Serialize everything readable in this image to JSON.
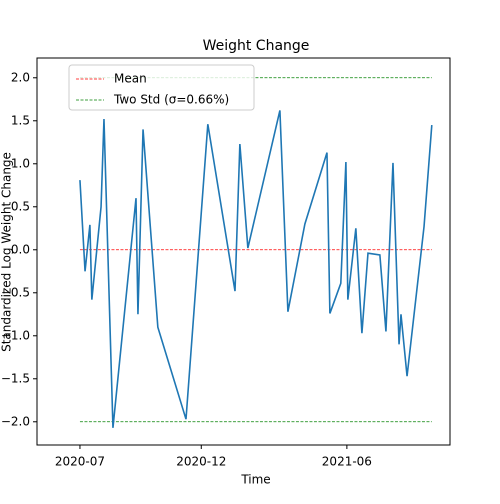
{
  "chart_data": {
    "type": "line",
    "title": "Weight Change",
    "xlabel": "Time",
    "ylabel": "Standardized Log Weight Change",
    "x": [
      0,
      0.21,
      0.41,
      0.49,
      0.87,
      0.99,
      1.36,
      2.31,
      2.39,
      2.6,
      3.21,
      4.37,
      5.27,
      6.39,
      6.59,
      6.92,
      8.24,
      8.57,
      9.27,
      10.18,
      10.3,
      10.75,
      10.96,
      11.04,
      11.37,
      11.62,
      11.87,
      12.36,
      12.61,
      12.9,
      13.15,
      13.23,
      13.48,
      14.18,
      14.5
    ],
    "series": [
      {
        "color": "#1f77b4",
        "values": [
          0.81,
          -0.25,
          0.29,
          -0.58,
          0.5,
          1.52,
          -2.07,
          0.6,
          -0.75,
          1.4,
          -0.9,
          -1.97,
          1.46,
          -0.48,
          1.23,
          0.02,
          1.62,
          -0.72,
          0.3,
          1.13,
          -0.74,
          -0.39,
          1.02,
          -0.58,
          0.25,
          -0.97,
          -0.04,
          -0.06,
          -0.95,
          1.01,
          -1.1,
          -0.75,
          -1.47,
          0.27,
          1.45
        ]
      }
    ],
    "reference_lines": [
      {
        "name": "Mean",
        "color": "#ff0000",
        "values": [
          0
        ]
      },
      {
        "name": "Two Std (σ=0.66%)",
        "color": "#008000",
        "values": [
          2,
          -2
        ]
      }
    ],
    "xlim": [
      -1.77,
      15.25
    ],
    "ylim": [
      -2.27,
      2.23
    ],
    "xticks": [
      {
        "value": 0,
        "label": "2020-07"
      },
      {
        "value": 5,
        "label": "2020-12"
      },
      {
        "value": 11,
        "label": "2021-06"
      }
    ],
    "yticks": [
      {
        "value": 2,
        "label": "2.0"
      },
      {
        "value": 1.5,
        "label": "1.5"
      },
      {
        "value": 1,
        "label": "1.0"
      },
      {
        "value": 0.5,
        "label": "0.5"
      },
      {
        "value": 0,
        "label": "0.0"
      },
      {
        "value": -0.5,
        "label": "−0.5"
      },
      {
        "value": -1,
        "label": "−1.0"
      },
      {
        "value": -1.5,
        "label": "−1.5"
      },
      {
        "value": -2,
        "label": "−2.0"
      }
    ],
    "legend": "upper left"
  }
}
